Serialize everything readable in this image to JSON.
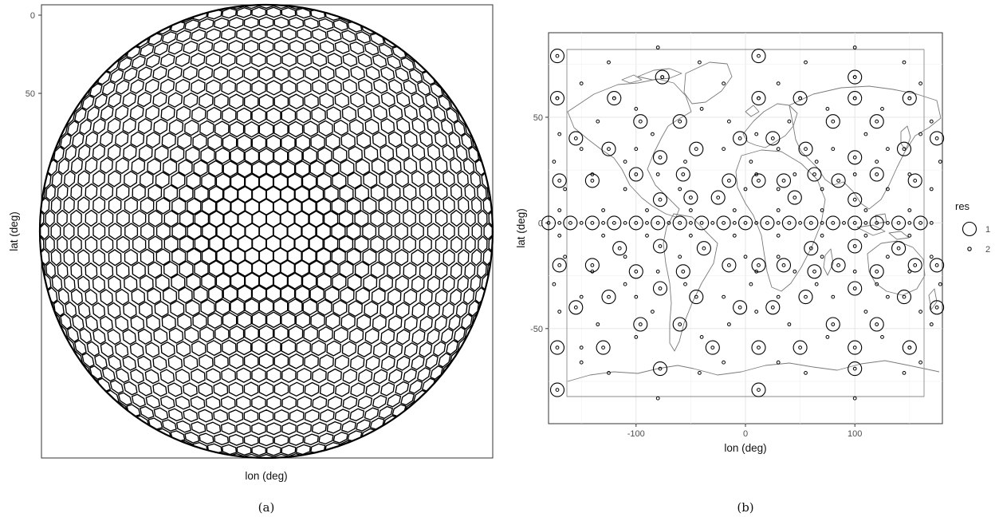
{
  "panels": {
    "a": {
      "caption": "(a)",
      "xlabel": "lon (deg)",
      "ylabel": "lat (deg)",
      "y_ticks": [
        "0",
        "50"
      ]
    },
    "b": {
      "caption": "(b)",
      "xlabel": "lon (deg)",
      "ylabel": "lat (deg)",
      "legend_title": "res",
      "legend_items": [
        "1",
        "2"
      ]
    }
  },
  "chart_data": [
    {
      "panel": "a",
      "type": "scatter",
      "description_of_marks": "orthographic-like view of a hexagonal discrete global grid drawn as polygon outlines on a disc",
      "xlabel": "lon (deg)",
      "ylabel": "lat (deg)",
      "y_tick_labels": [
        "0",
        "50"
      ],
      "grid": false
    },
    {
      "panel": "b",
      "type": "scatter",
      "xlabel": "lon (deg)",
      "ylabel": "lat (deg)",
      "xlim": [
        -180,
        180
      ],
      "ylim": [
        -95,
        90
      ],
      "x_ticks": [
        -100,
        0,
        100
      ],
      "y_ticks": [
        -50,
        0,
        50
      ],
      "grid": true,
      "legend_title": "res",
      "legend_position": "right",
      "series": [
        {
          "name": "1",
          "lat_rows": [
            {
              "lat": 79,
              "lon": [
                -172,
                12
              ]
            },
            {
              "lat": 69,
              "lon": [
                -76,
                100
              ]
            },
            {
              "lat": 59,
              "lon": [
                -172,
                -120,
                12,
                50,
                100,
                150
              ]
            },
            {
              "lat": 48,
              "lon": [
                -96,
                -60,
                80,
                120
              ]
            },
            {
              "lat": 40,
              "lon": [
                -155,
                -5,
                25,
                175
              ]
            },
            {
              "lat": 35,
              "lon": [
                -125,
                -45,
                55,
                145
              ]
            },
            {
              "lat": 31,
              "lon": [
                -78,
                100
              ]
            },
            {
              "lat": 23,
              "lon": [
                -100,
                -57,
                63,
                120
              ]
            },
            {
              "lat": 20,
              "lon": [
                -170,
                -140,
                -15,
                12,
                35,
                85,
                155
              ]
            },
            {
              "lat": 11,
              "lon": [
                -78,
                100
              ]
            },
            {
              "lat": 12,
              "lon": [
                -25,
                -50,
                45
              ]
            },
            {
              "lat": 0,
              "lon": [
                -180,
                -160,
                -140,
                -120,
                -100,
                -80,
                -60,
                -40,
                -20,
                0,
                20,
                40,
                60,
                80,
                100,
                120,
                140,
                160
              ]
            },
            {
              "lat": -11,
              "lon": [
                -78,
                100
              ]
            },
            {
              "lat": -12,
              "lon": [
                -115,
                -38,
                60,
                140
              ]
            },
            {
              "lat": -20,
              "lon": [
                -170,
                -140,
                -15,
                12,
                35,
                85,
                155,
                175
              ]
            },
            {
              "lat": -23,
              "lon": [
                -100,
                -57,
                63,
                120
              ]
            },
            {
              "lat": -31,
              "lon": [
                -78,
                100
              ]
            },
            {
              "lat": -35,
              "lon": [
                -125,
                -45,
                55,
                145
              ]
            },
            {
              "lat": -40,
              "lon": [
                -155,
                -5,
                25,
                175
              ]
            },
            {
              "lat": -48,
              "lon": [
                -96,
                -60,
                80,
                120
              ]
            },
            {
              "lat": -59,
              "lon": [
                -172,
                -130,
                -30,
                12,
                50,
                100,
                150
              ]
            },
            {
              "lat": -69,
              "lon": [
                -78,
                100
              ]
            },
            {
              "lat": -79,
              "lon": [
                -172,
                12
              ]
            }
          ]
        },
        {
          "name": "2",
          "lat_rows": [
            {
              "lat": 83,
              "lon": [
                -80,
                100
              ]
            },
            {
              "lat": 76,
              "lon": [
                -125,
                -42,
                55,
                145
              ]
            },
            {
              "lat": 69,
              "lon": [
                -76,
                100
              ]
            },
            {
              "lat": 66,
              "lon": [
                -150,
                -20,
                30,
                160
              ]
            },
            {
              "lat": 59,
              "lon": [
                -172,
                -120,
                12,
                50,
                100,
                150
              ]
            },
            {
              "lat": 54,
              "lon": [
                -100,
                -40,
                75,
                125
              ]
            },
            {
              "lat": 48,
              "lon": [
                -135,
                -15,
                40,
                170
              ]
            },
            {
              "lat": 42,
              "lon": [
                -170,
                -85,
                10,
                110,
                160
              ]
            },
            {
              "lat": 35,
              "lon": [
                -150,
                -100,
                -20,
                30,
                80,
                130
              ]
            },
            {
              "lat": 29,
              "lon": [
                -175,
                -110,
                -55,
                5,
                65,
                120,
                178
              ]
            },
            {
              "lat": 23,
              "lon": [
                -140,
                -80,
                10,
                45,
                100,
                150
              ]
            },
            {
              "lat": 16,
              "lon": [
                -165,
                -110,
                -60,
                0,
                30,
                70,
                130,
                170
              ]
            },
            {
              "lat": 6,
              "lon": [
                -170,
                -130,
                -90,
                -50,
                -10,
                30,
                70,
                110,
                150
              ]
            },
            {
              "lat": 0,
              "lon": [
                -170,
                -150,
                -130,
                -110,
                -90,
                -70,
                -50,
                -30,
                -10,
                10,
                30,
                50,
                70,
                90,
                110,
                130,
                150,
                170
              ]
            },
            {
              "lat": -6,
              "lon": [
                -170,
                -130,
                -90,
                -50,
                -10,
                30,
                70,
                110,
                150
              ]
            },
            {
              "lat": -16,
              "lon": [
                -165,
                -110,
                -60,
                0,
                30,
                70,
                130,
                170
              ]
            },
            {
              "lat": -23,
              "lon": [
                -140,
                -80,
                10,
                45,
                100,
                150
              ]
            },
            {
              "lat": -29,
              "lon": [
                -175,
                -110,
                -55,
                5,
                65,
                120,
                178
              ]
            },
            {
              "lat": -35,
              "lon": [
                -150,
                -100,
                -20,
                30,
                80,
                130
              ]
            },
            {
              "lat": -42,
              "lon": [
                -170,
                -85,
                10,
                110,
                160
              ]
            },
            {
              "lat": -48,
              "lon": [
                -135,
                -15,
                40,
                170
              ]
            },
            {
              "lat": -54,
              "lon": [
                -100,
                -40,
                75,
                125
              ]
            },
            {
              "lat": -59,
              "lon": [
                -150,
                150
              ]
            },
            {
              "lat": -66,
              "lon": [
                -150,
                -20,
                30,
                160
              ]
            },
            {
              "lat": -71,
              "lon": [
                -125,
                -42,
                55,
                145
              ]
            },
            {
              "lat": -83,
              "lon": [
                -80,
                100
              ]
            }
          ]
        }
      ]
    }
  ]
}
